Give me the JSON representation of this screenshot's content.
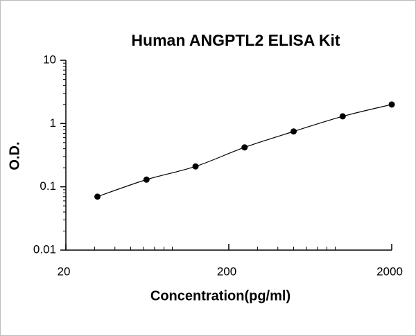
{
  "chart_data": {
    "type": "scatter",
    "title": "Human ANGPTL2  ELISA Kit",
    "x_label": "Concentration(pg/ml)",
    "y_label": "O.D.",
    "x": [
      31.25,
      62.5,
      125,
      250,
      500,
      1000,
      2000
    ],
    "values": [
      0.07,
      0.13,
      0.21,
      0.42,
      0.75,
      1.3,
      2.0
    ],
    "color": "#000000",
    "xlim": [
      20,
      2000
    ],
    "ylim": [
      0.01,
      10
    ],
    "xticks": [
      20,
      200,
      2000
    ],
    "yticks": [
      0.01,
      0.1,
      1,
      10
    ],
    "log_x": true,
    "log_y": true,
    "grid": false
  }
}
